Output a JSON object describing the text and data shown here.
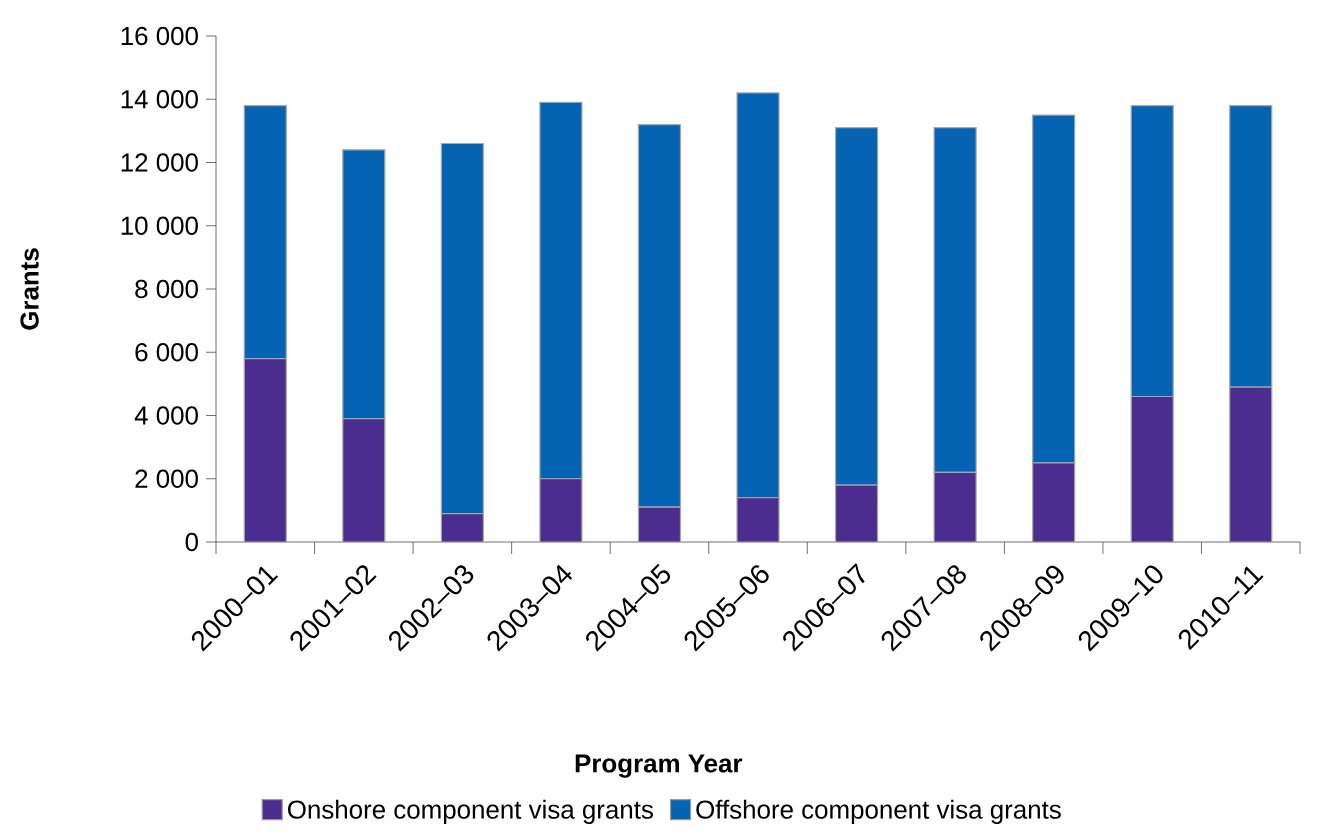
{
  "chart_data": {
    "type": "bar",
    "stacked": true,
    "xlabel": "Program Year",
    "ylabel": "Grants",
    "categories": [
      "2000–01",
      "2001–02",
      "2002–03",
      "2003–04",
      "2004–05",
      "2005–06",
      "2006–07",
      "2007–08",
      "2008–09",
      "2009–10",
      "2010–11"
    ],
    "series": [
      {
        "name": "Onshore component visa grants",
        "color": "#4b2d8f",
        "values": [
          5800,
          3900,
          900,
          2000,
          1100,
          1400,
          1800,
          2200,
          2500,
          4600,
          4900
        ]
      },
      {
        "name": "Offshore component visa grants",
        "color": "#0563b4",
        "values": [
          8000,
          8500,
          11700,
          11900,
          12100,
          12800,
          11300,
          10900,
          11000,
          9200,
          8900
        ]
      }
    ],
    "ylim": [
      0,
      16000
    ],
    "yticks": [
      {
        "value": 0,
        "label": "0"
      },
      {
        "value": 2000,
        "label": "2 000"
      },
      {
        "value": 4000,
        "label": "4 000"
      },
      {
        "value": 6000,
        "label": "6 000"
      },
      {
        "value": 8000,
        "label": "8 000"
      },
      {
        "value": 10000,
        "label": "10 000"
      },
      {
        "value": 12000,
        "label": "12 000"
      },
      {
        "value": 14000,
        "label": "14 000"
      },
      {
        "value": 16000,
        "label": "16 000"
      }
    ],
    "legend": "bottom"
  }
}
